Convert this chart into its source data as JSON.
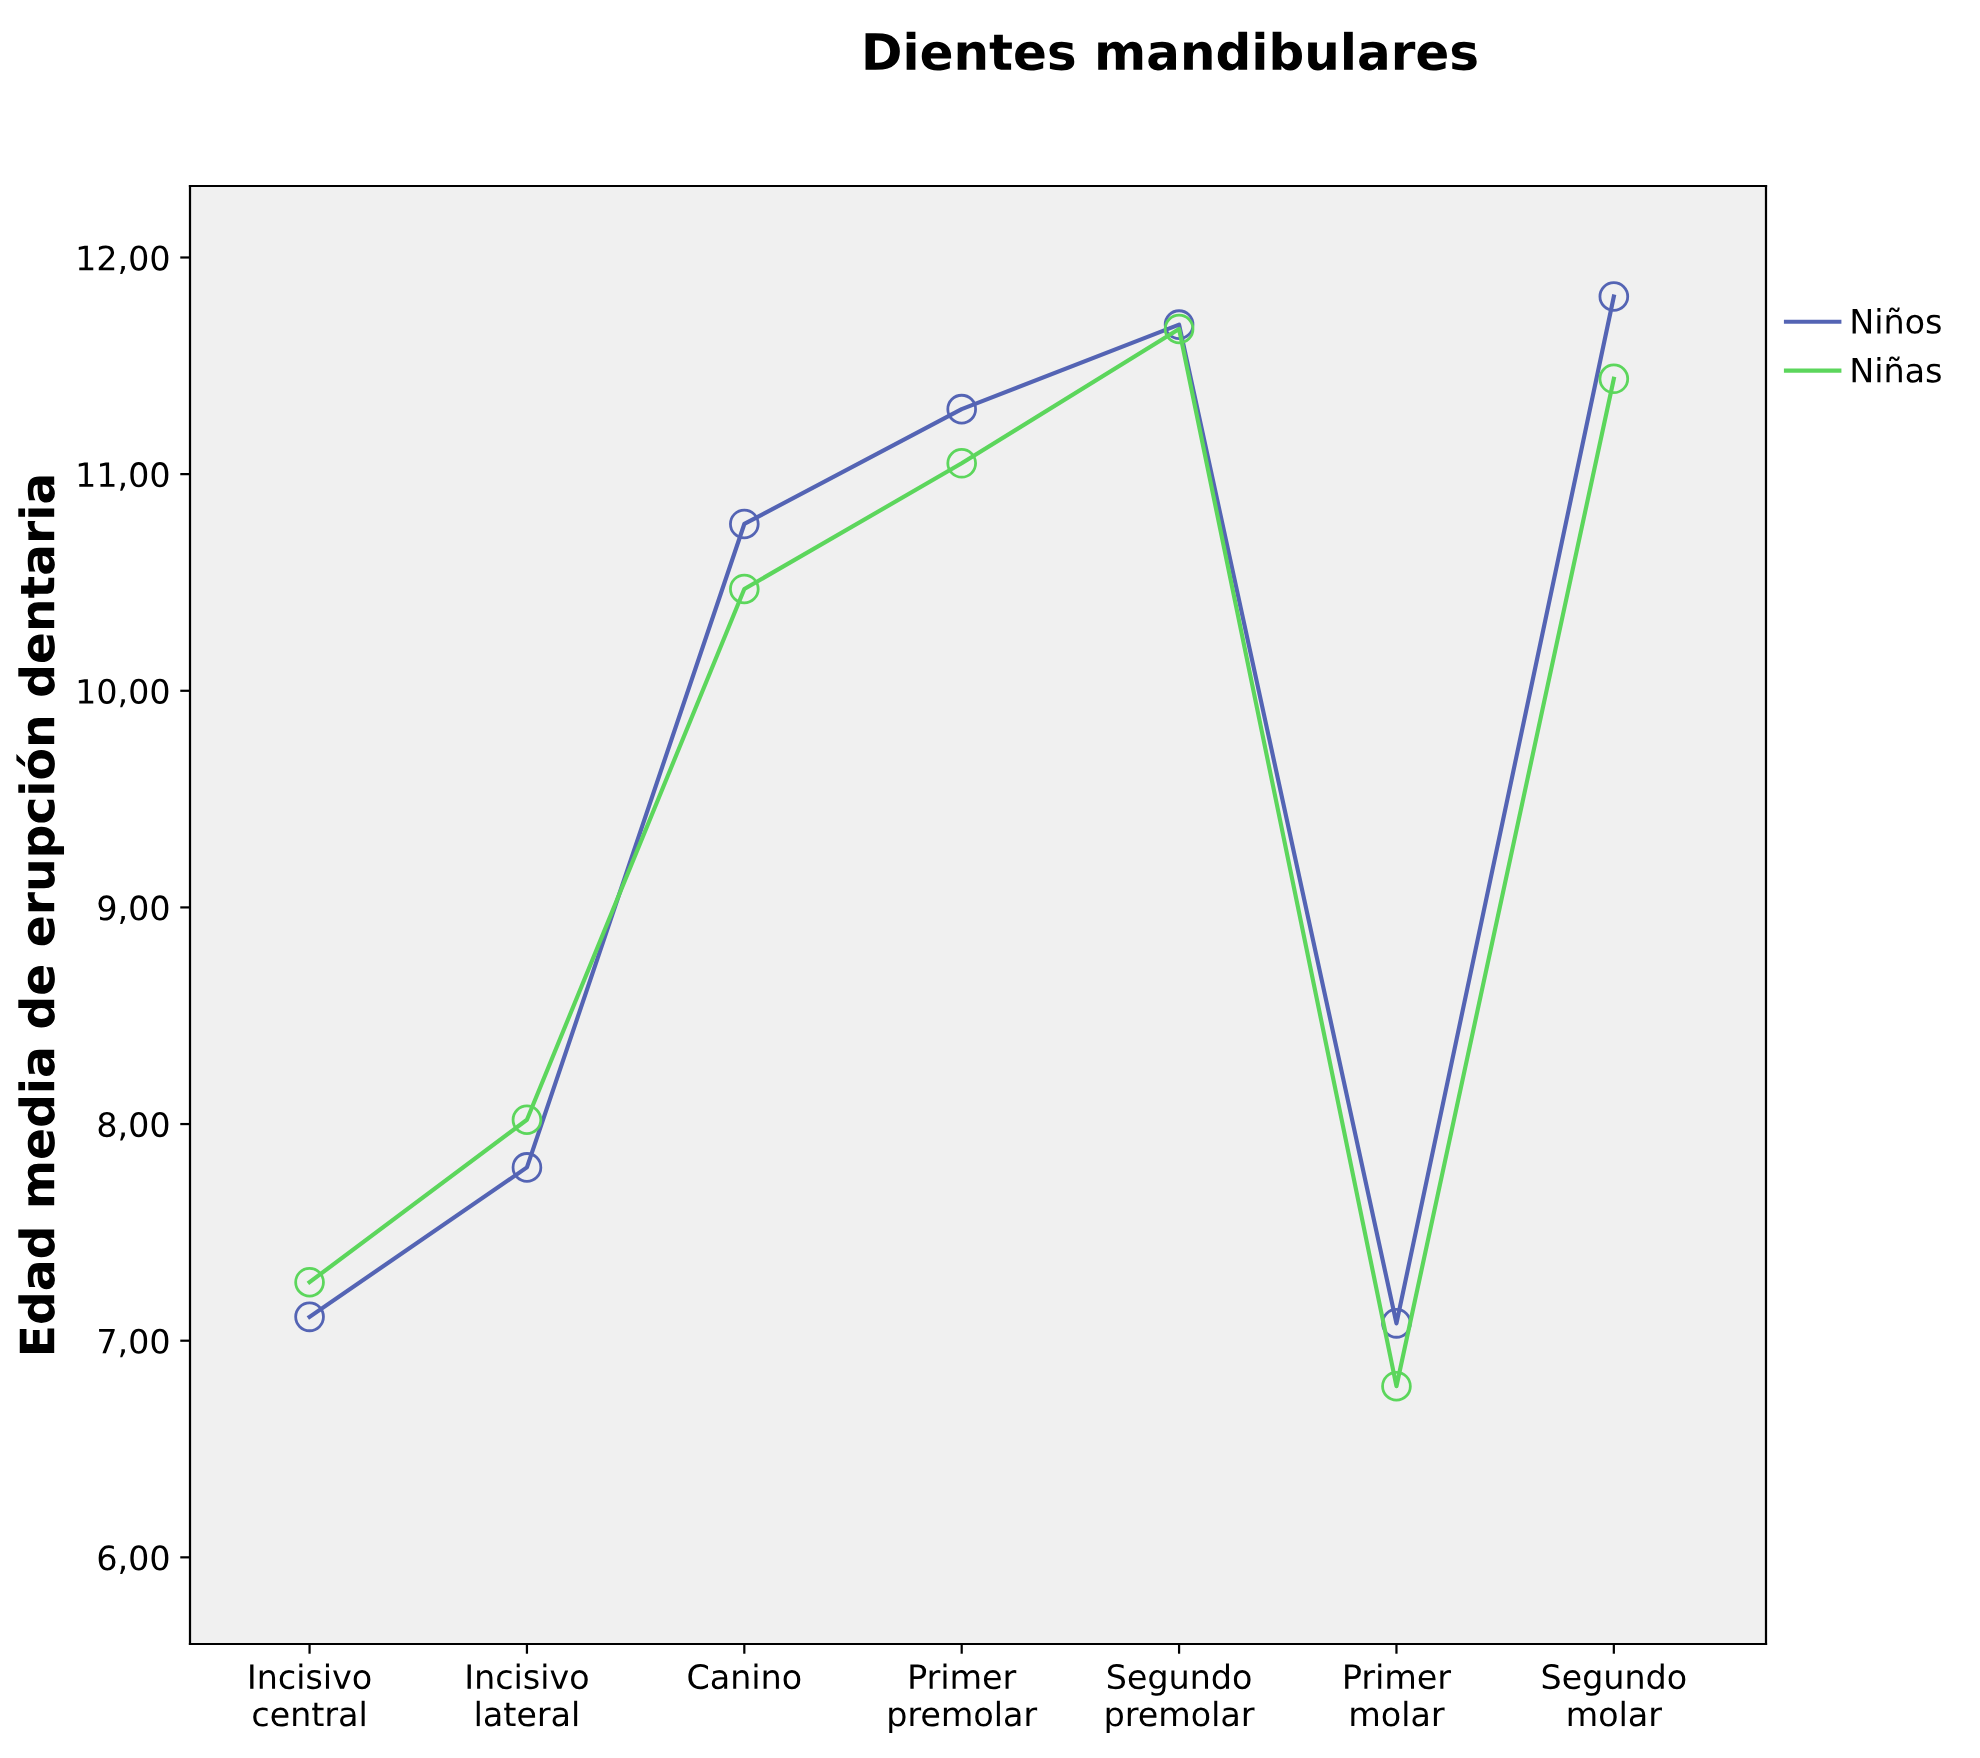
{
  "chart_data": {
    "type": "line",
    "title": "Dientes mandibulares",
    "ylabel": "Edad media de erupción dentaria",
    "categories": [
      "Incisivo\ncentral",
      "Incisivo\nlateral",
      "Canino",
      "Primer\npremolar",
      "Segundo\npremolar",
      "Primer\nmolar",
      "Segundo\nmolar"
    ],
    "series": [
      {
        "name": "Niños",
        "color": "#5464b4",
        "values": [
          7.11,
          7.8,
          10.77,
          11.3,
          11.69,
          7.08,
          11.82
        ]
      },
      {
        "name": "Niñas",
        "color": "#5cd65c",
        "values": [
          7.27,
          8.02,
          10.47,
          11.05,
          11.67,
          6.79,
          11.44
        ]
      }
    ],
    "ylim": [
      5.6,
      12.33
    ],
    "yticks": [
      {
        "value": 6,
        "label": "6,00"
      },
      {
        "value": 7,
        "label": "7,00"
      },
      {
        "value": 8,
        "label": "8,00"
      },
      {
        "value": 9,
        "label": "9,00"
      },
      {
        "value": 10,
        "label": "10,00"
      },
      {
        "value": 11,
        "label": "11,00"
      },
      {
        "value": 12,
        "label": "12,00"
      }
    ],
    "marker": "circle",
    "line_style": "solid",
    "grid": false,
    "legend": "top right"
  }
}
